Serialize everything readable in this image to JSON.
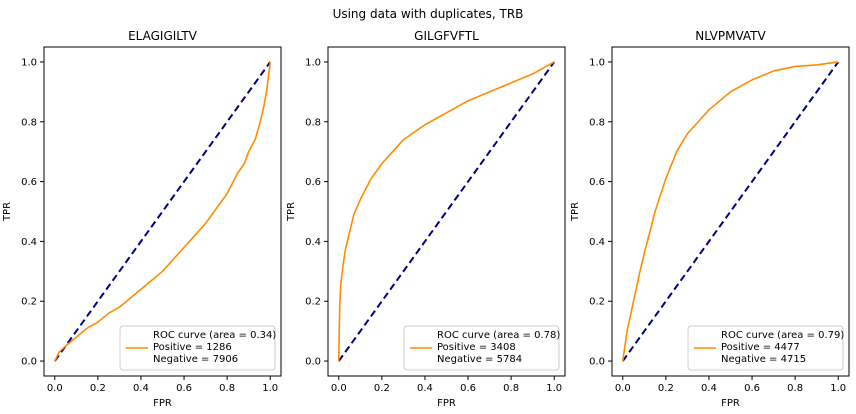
{
  "figure": {
    "suptitle": "Using data with duplicates, TRB"
  },
  "colors": {
    "roc_line": "#ff8c00",
    "chance_line": "#000080",
    "axes": "#000000",
    "background": "#ffffff"
  },
  "chart_data": [
    {
      "type": "line",
      "title": "ELAGIGILTV",
      "xlabel": "FPR",
      "ylabel": "TPR",
      "xlim": [
        -0.05,
        1.05
      ],
      "ylim": [
        -0.05,
        1.05
      ],
      "xticks": [
        "0.0",
        "0.2",
        "0.4",
        "0.6",
        "0.8",
        "1.0"
      ],
      "yticks": [
        "0.0",
        "0.2",
        "0.4",
        "0.6",
        "0.8",
        "1.0"
      ],
      "legend_position": "lower right",
      "legend_lines": [
        "ROC curve (area = 0.34)",
        "Positive = 1286",
        "Negative = 7906"
      ],
      "series": [
        {
          "name": "ROC curve (area = 0.34)",
          "x": [
            0,
            0.02,
            0.05,
            0.1,
            0.15,
            0.2,
            0.25,
            0.3,
            0.35,
            0.4,
            0.45,
            0.5,
            0.55,
            0.6,
            0.65,
            0.7,
            0.75,
            0.8,
            0.85,
            0.88,
            0.9,
            0.93,
            0.95,
            0.97,
            0.98,
            0.99,
            1.0
          ],
          "y": [
            0,
            0.03,
            0.05,
            0.08,
            0.11,
            0.13,
            0.16,
            0.18,
            0.21,
            0.24,
            0.27,
            0.3,
            0.34,
            0.38,
            0.42,
            0.46,
            0.51,
            0.56,
            0.63,
            0.66,
            0.7,
            0.74,
            0.79,
            0.85,
            0.89,
            0.94,
            1.0
          ]
        }
      ],
      "chance_line": {
        "x": [
          0,
          1
        ],
        "y": [
          0,
          1
        ]
      }
    },
    {
      "type": "line",
      "title": "GILGFVFTL",
      "xlabel": "FPR",
      "ylabel": "TPR",
      "xlim": [
        -0.05,
        1.05
      ],
      "ylim": [
        -0.05,
        1.05
      ],
      "xticks": [
        "0.0",
        "0.2",
        "0.4",
        "0.6",
        "0.8",
        "1.0"
      ],
      "yticks": [
        "0.0",
        "0.2",
        "0.4",
        "0.6",
        "0.8",
        "1.0"
      ],
      "legend_position": "lower right",
      "legend_lines": [
        "ROC curve (area = 0.78)",
        "Positive = 3408",
        "Negative = 5784"
      ],
      "series": [
        {
          "name": "ROC curve (area = 0.78)",
          "x": [
            0,
            0.002,
            0.005,
            0.01,
            0.02,
            0.03,
            0.05,
            0.07,
            0.1,
            0.15,
            0.2,
            0.25,
            0.3,
            0.35,
            0.4,
            0.5,
            0.6,
            0.7,
            0.8,
            0.9,
            0.95,
            1.0
          ],
          "y": [
            0,
            0.1,
            0.2,
            0.26,
            0.32,
            0.37,
            0.43,
            0.49,
            0.54,
            0.61,
            0.66,
            0.7,
            0.74,
            0.765,
            0.79,
            0.83,
            0.87,
            0.9,
            0.93,
            0.96,
            0.98,
            1.0
          ]
        }
      ],
      "chance_line": {
        "x": [
          0,
          1
        ],
        "y": [
          0,
          1
        ]
      }
    },
    {
      "type": "line",
      "title": "NLVPMVATV",
      "xlabel": "FPR",
      "ylabel": "TPR",
      "xlim": [
        -0.05,
        1.05
      ],
      "ylim": [
        -0.05,
        1.05
      ],
      "xticks": [
        "0.0",
        "0.2",
        "0.4",
        "0.6",
        "0.8",
        "1.0"
      ],
      "yticks": [
        "0.0",
        "0.2",
        "0.4",
        "0.6",
        "0.8",
        "1.0"
      ],
      "legend_position": "lower right",
      "legend_lines": [
        "ROC curve (area = 0.79)",
        "Positive = 4477",
        "Negative = 4715"
      ],
      "series": [
        {
          "name": "ROC curve (area = 0.79)",
          "x": [
            0,
            0.01,
            0.02,
            0.05,
            0.08,
            0.1,
            0.15,
            0.2,
            0.25,
            0.3,
            0.35,
            0.4,
            0.5,
            0.6,
            0.7,
            0.8,
            0.9,
            1.0
          ],
          "y": [
            0,
            0.05,
            0.1,
            0.2,
            0.3,
            0.36,
            0.5,
            0.61,
            0.7,
            0.76,
            0.8,
            0.84,
            0.9,
            0.94,
            0.97,
            0.985,
            0.99,
            1.0
          ]
        }
      ],
      "chance_line": {
        "x": [
          0,
          1
        ],
        "y": [
          0,
          1
        ]
      }
    }
  ]
}
